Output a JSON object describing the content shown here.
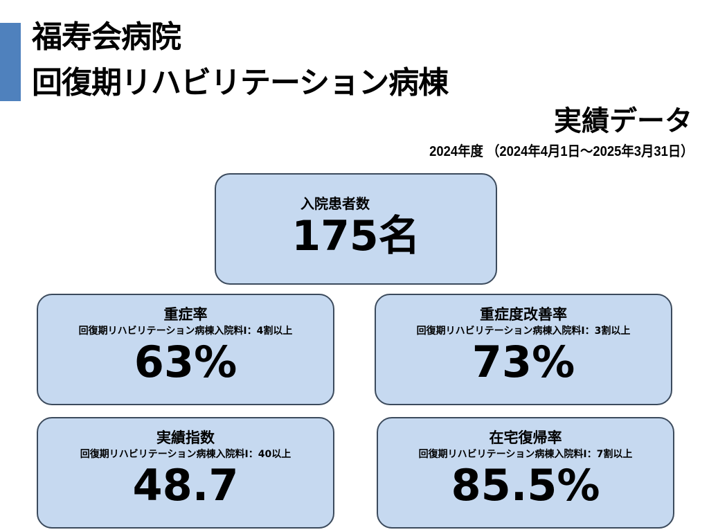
{
  "header": {
    "title_line1": "福寿会病院",
    "title_line2": "回復期リハビリテーション病棟",
    "subtitle": "実績データ",
    "period": "2024年度 （2024年4月1日～2025年3月31日）",
    "accent_color": "#4f81bd"
  },
  "summary": {
    "label": "入院患者数",
    "value": "175名"
  },
  "metrics": [
    {
      "label": "重症率",
      "criteria": "回復期リハビリテーション病棟入院料Ⅰ：4割以上",
      "value": "63%"
    },
    {
      "label": "重症度改善率",
      "criteria": "回復期リハビリテーション病棟入院料Ⅰ：3割以上",
      "value": "73%"
    },
    {
      "label": "実績指数",
      "criteria": "回復期リハビリテーション病棟入院料Ⅰ：40以上",
      "value": "48.7"
    },
    {
      "label": "在宅復帰率",
      "criteria": "回復期リハビリテーション病棟入院料Ⅰ：7割以上",
      "value": "85.5%"
    }
  ],
  "colors": {
    "card_fill": "#c6d9f0",
    "card_border": "#3b4a5c"
  }
}
